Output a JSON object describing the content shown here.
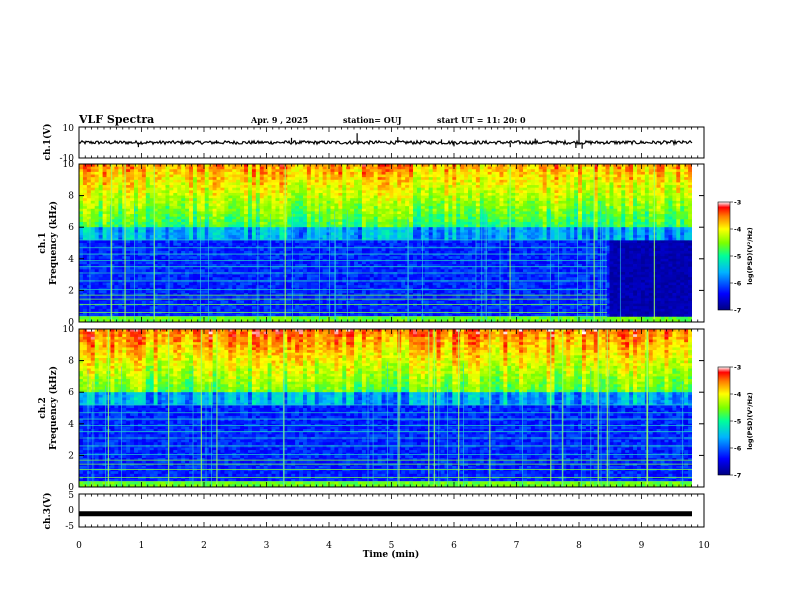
{
  "header": {
    "title": "VLF Spectra",
    "date": "Apr. 9  , 2025",
    "station": "station= OUJ",
    "start": "start  UT  =   11: 20: 0"
  },
  "chart_data": [
    {
      "panel": "ch1",
      "type": "line",
      "ylabel": "ch.1(V)",
      "ylim": [
        -10,
        10
      ],
      "yticks": [
        "10",
        "-10"
      ],
      "xlim": [
        0,
        10
      ],
      "baseline": 0,
      "spikes": [
        {
          "t": 0.95,
          "v": -3
        },
        {
          "t": 2.2,
          "v": 1.5
        },
        {
          "t": 3.4,
          "v": 3
        },
        {
          "t": 4.45,
          "v": 6
        },
        {
          "t": 5.1,
          "v": 3.5
        },
        {
          "t": 5.8,
          "v": 2
        },
        {
          "t": 6.0,
          "v": -2.5
        },
        {
          "t": 6.9,
          "v": -3
        },
        {
          "t": 7.3,
          "v": 2.5
        },
        {
          "t": 7.95,
          "v": -3.5
        },
        {
          "t": 8.0,
          "v": 8
        },
        {
          "t": 8.05,
          "v": -4
        }
      ]
    },
    {
      "panel": "ch1-spectrogram",
      "type": "heatmap",
      "ylabel": "Frequency  (kHz)",
      "channel_label": "ch.1",
      "ylim": [
        0,
        10
      ],
      "yticks": [
        "0",
        "2",
        "4",
        "6",
        "8",
        "10"
      ],
      "xlim": [
        0,
        10
      ],
      "colorbar": {
        "min": -7,
        "max": -3,
        "ticks": [
          "-3",
          "-4",
          "-5",
          "-6",
          "-7"
        ],
        "label": "log(PSD)(V²/Hz)"
      }
    },
    {
      "panel": "ch2-spectrogram",
      "type": "heatmap",
      "ylabel": "Frequency  (kHz)",
      "channel_label": "ch.2",
      "ylim": [
        0,
        10
      ],
      "yticks": [
        "0",
        "2",
        "4",
        "6",
        "8",
        "10"
      ],
      "xlim": [
        0,
        10
      ],
      "colorbar": {
        "min": -7,
        "max": -3,
        "ticks": [
          "-3",
          "-4",
          "-5",
          "-6",
          "-7"
        ],
        "label": "log(PSD)(V²/Hz)"
      }
    },
    {
      "panel": "ch3",
      "type": "line",
      "ylabel": "ch.3(V)",
      "ylim": [
        -5,
        5
      ],
      "yticks": [
        "5",
        "0",
        "-5"
      ],
      "xlim": [
        0,
        10
      ],
      "level": -1
    }
  ],
  "xaxis": {
    "label": "Time  (min)",
    "ticks": [
      "0",
      "1",
      "2",
      "3",
      "4",
      "5",
      "6",
      "7",
      "8",
      "9",
      "10"
    ]
  },
  "colors": {
    "low": "#00009a",
    "mid": "#00e0ff",
    "high": "#ffff00",
    "max": "#c00000"
  }
}
